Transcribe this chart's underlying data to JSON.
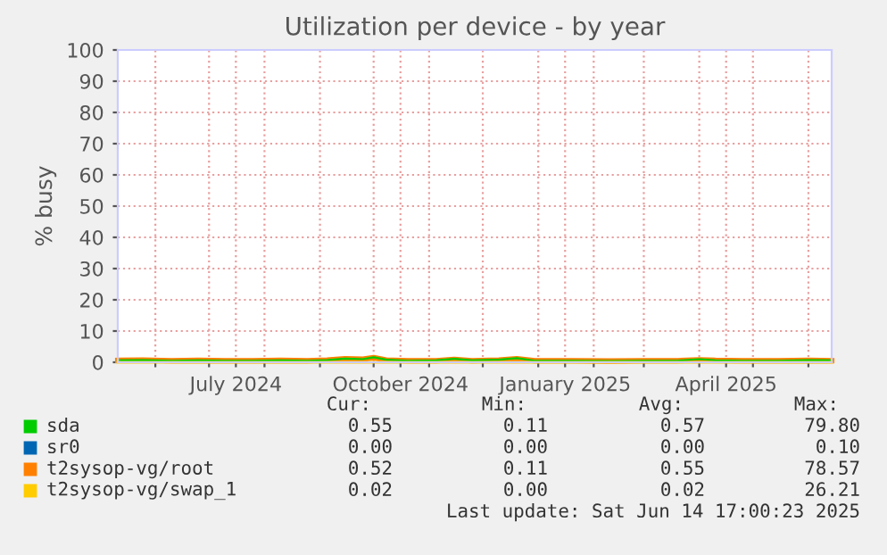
{
  "chart_data": {
    "type": "line",
    "title": "Utilization per device - by year",
    "ylabel": "% busy",
    "x": [
      "2024-05-11",
      "2024-05-25",
      "2024-06-10",
      "2024-06-25",
      "2024-07-10",
      "2024-07-25",
      "2024-08-10",
      "2024-08-25",
      "2024-09-05",
      "2024-09-15",
      "2024-09-25",
      "2024-10-01",
      "2024-10-08",
      "2024-10-20",
      "2024-11-05",
      "2024-11-15",
      "2024-11-25",
      "2024-12-10",
      "2024-12-20",
      "2024-12-30",
      "2025-01-20",
      "2025-02-10",
      "2025-03-01",
      "2025-03-20",
      "2025-04-01",
      "2025-04-10",
      "2025-04-25",
      "2025-05-15",
      "2025-06-01",
      "2025-06-14"
    ],
    "series": [
      {
        "name": "sda",
        "color": "#00cc00",
        "values": [
          0.6,
          0.7,
          0.5,
          0.6,
          0.5,
          0.5,
          0.6,
          0.5,
          0.7,
          1.2,
          1.0,
          1.6,
          0.8,
          0.5,
          0.6,
          1.1,
          0.6,
          0.8,
          1.3,
          0.5,
          0.5,
          0.4,
          0.5,
          0.5,
          1.0,
          0.6,
          0.5,
          0.5,
          0.7,
          0.6
        ]
      },
      {
        "name": "sr0",
        "color": "#0066b3",
        "values": [
          null,
          null,
          null,
          null,
          null,
          null,
          null,
          null,
          null,
          null,
          null,
          null,
          null,
          null,
          null,
          null,
          null,
          null,
          null,
          null,
          null,
          null,
          null,
          null,
          null,
          null,
          null,
          null,
          null,
          null
        ]
      },
      {
        "name": "t2sysop-vg/root",
        "color": "#ff8000",
        "values": [
          0.6,
          0.7,
          0.5,
          0.6,
          0.5,
          0.5,
          0.6,
          0.5,
          0.7,
          1.1,
          1.0,
          1.5,
          0.7,
          0.5,
          0.5,
          0.9,
          0.5,
          0.7,
          1.1,
          0.5,
          0.5,
          0.4,
          0.5,
          0.5,
          0.8,
          0.6,
          0.5,
          0.5,
          0.6,
          0.5
        ]
      },
      {
        "name": "t2sysop-vg/swap_1",
        "color": "#ffcc00",
        "values": [
          0,
          0,
          0,
          0,
          0,
          0,
          0,
          0,
          0,
          0,
          0,
          0,
          0,
          0,
          0,
          0,
          0,
          0,
          0,
          0,
          0,
          0,
          0,
          0,
          0,
          0,
          0,
          0,
          0,
          0
        ]
      }
    ],
    "xlim": [
      "2024-05-11",
      "2025-06-14"
    ],
    "xticks": [
      {
        "value": "2024-06-01",
        "label": null
      },
      {
        "value": "2024-07-01",
        "label": null
      },
      {
        "value": "2024-07-16",
        "label": "July 2024"
      },
      {
        "value": "2024-08-01",
        "label": null
      },
      {
        "value": "2024-09-01",
        "label": null
      },
      {
        "value": "2024-10-01",
        "label": null
      },
      {
        "value": "2024-10-16",
        "label": "October 2024"
      },
      {
        "value": "2024-11-01",
        "label": null
      },
      {
        "value": "2024-12-01",
        "label": null
      },
      {
        "value": "2025-01-01",
        "label": null
      },
      {
        "value": "2025-01-16",
        "label": "January 2025"
      },
      {
        "value": "2025-02-01",
        "label": null
      },
      {
        "value": "2025-03-01",
        "label": null
      },
      {
        "value": "2025-04-01",
        "label": null
      },
      {
        "value": "2025-04-16",
        "label": "April 2025"
      },
      {
        "value": "2025-05-01",
        "label": null
      },
      {
        "value": "2025-06-01",
        "label": null
      }
    ],
    "ylim": [
      0,
      100
    ],
    "yticks": [
      0,
      10,
      20,
      30,
      40,
      50,
      60,
      70,
      80,
      90,
      100
    ],
    "grid": true,
    "legend": "bottom",
    "marker": "none",
    "line_style": "solid",
    "annotations": [
      "Cur:",
      "Min:",
      "Avg:",
      "Max:",
      "0.55",
      "0.11",
      "0.57",
      "79.80",
      "0.00",
      "0.00",
      "0.00",
      "0.10",
      "0.52",
      "0.11",
      "0.55",
      "78.57",
      "0.02",
      "0.00",
      "0.02",
      "26.21",
      "Last update: Sat Jun 14 17:00:23 2025"
    ]
  }
}
